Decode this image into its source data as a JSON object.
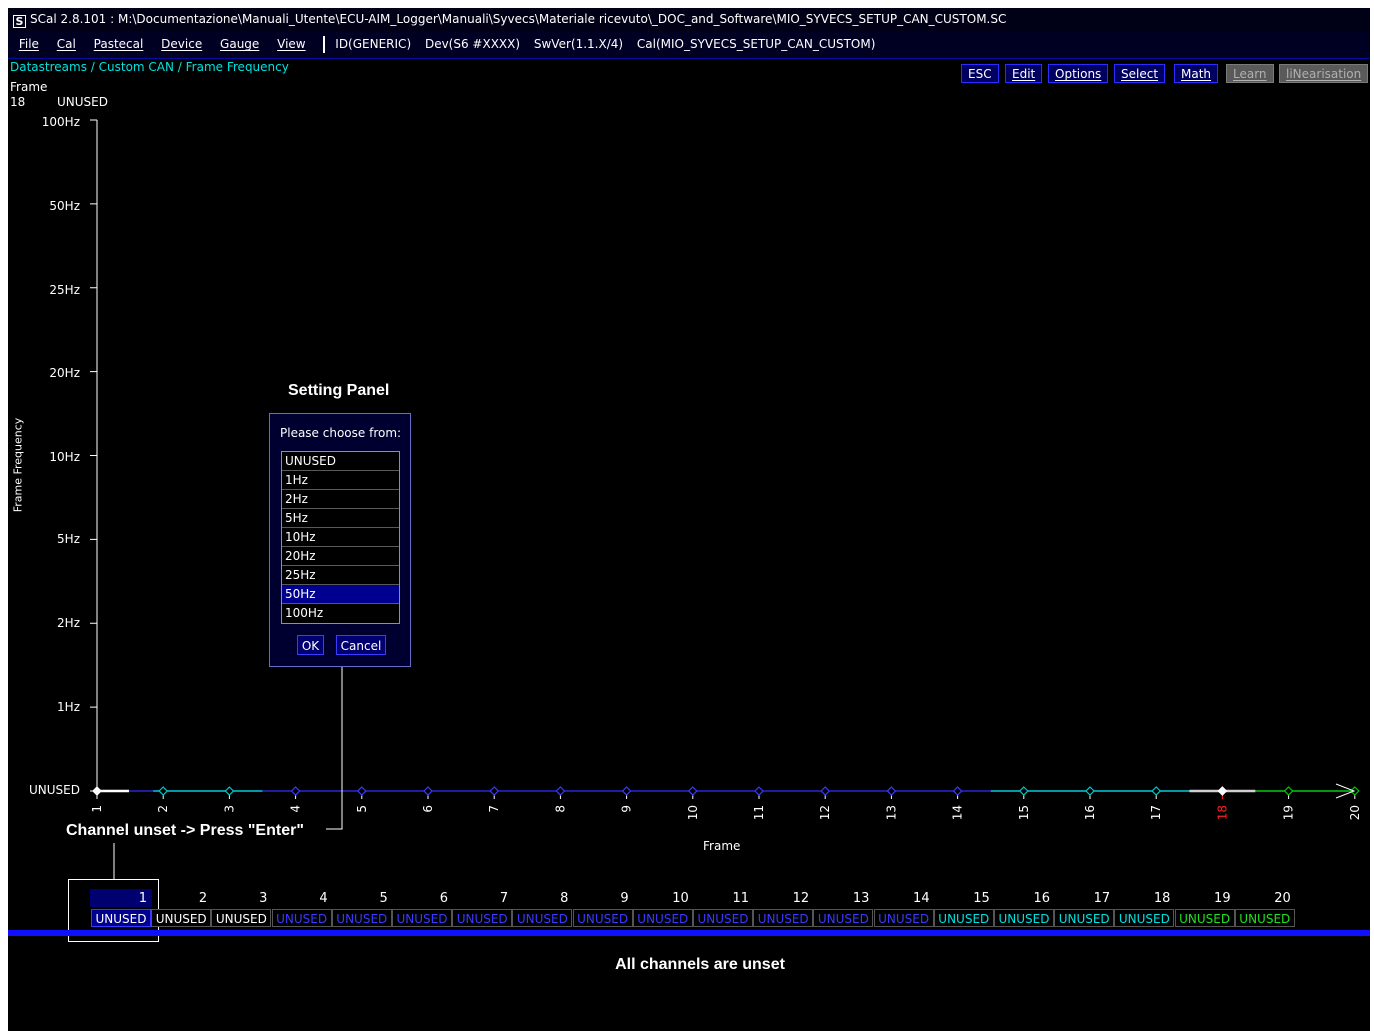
{
  "window": {
    "title": "SCal 2.8.101  :  M:\\Documentazione\\Manuali_Utente\\ECU-AIM_Logger\\Manuali\\Syvecs\\Materiale ricevuto\\_DOC_and_Software\\MIO_SYVECS_SETUP_CAN_CUSTOM.SC"
  },
  "menubar": {
    "items": [
      "File",
      "Cal",
      "Pastecal",
      "Device",
      "Gauge",
      "View"
    ],
    "status": {
      "id": "ID(GENERIC)",
      "dev": "Dev(S6 #XXXX)",
      "swver": "SwVer(1.1.X/4)",
      "cal": "Cal(MIO_SYVECS_SETUP_CAN_CUSTOM)"
    }
  },
  "breadcrumb": "Datastreams / Custom CAN / Frame Frequency",
  "info": {
    "label": "Frame",
    "index": "18",
    "value": "UNUSED"
  },
  "toolbar": {
    "esc": "ESC",
    "edit": "Edit",
    "options": "Options",
    "select": "Select",
    "math": "Math",
    "learn": "Learn",
    "linearisation": "liNearisation"
  },
  "chart": {
    "ylabel": "Frame Frequency",
    "xlabel": "Frame",
    "y_levels": [
      "UNUSED",
      "1Hz",
      "2Hz",
      "5Hz",
      "10Hz",
      "20Hz",
      "25Hz",
      "50Hz",
      "100Hz"
    ],
    "x_ticks": [
      "1",
      "2",
      "3",
      "4",
      "5",
      "6",
      "7",
      "8",
      "9",
      "10",
      "11",
      "12",
      "13",
      "14",
      "15",
      "16",
      "17",
      "18",
      "19",
      "20"
    ],
    "selected_frame": "18",
    "colors": {
      "axis": "#ffffff",
      "line": "#2f2fff",
      "cyan": "#00c8c8",
      "green": "#00c800",
      "selected": "#ff2020"
    }
  },
  "chart_data": {
    "type": "line",
    "x": [
      1,
      2,
      3,
      4,
      5,
      6,
      7,
      8,
      9,
      10,
      11,
      12,
      13,
      14,
      15,
      16,
      17,
      18,
      19,
      20
    ],
    "values": [
      "UNUSED",
      "UNUSED",
      "UNUSED",
      "UNUSED",
      "UNUSED",
      "UNUSED",
      "UNUSED",
      "UNUSED",
      "UNUSED",
      "UNUSED",
      "UNUSED",
      "UNUSED",
      "UNUSED",
      "UNUSED",
      "UNUSED",
      "UNUSED",
      "UNUSED",
      "UNUSED",
      "UNUSED",
      "UNUSED"
    ],
    "ylabel": "Frame Frequency",
    "xlabel": "Frame",
    "y_categories": [
      "UNUSED",
      "1Hz",
      "2Hz",
      "5Hz",
      "10Hz",
      "20Hz",
      "25Hz",
      "50Hz",
      "100Hz"
    ]
  },
  "annotations": {
    "setting_panel": "Setting Panel",
    "channel_unset": "Channel unset -> Press \"Enter\"",
    "all_unset": "All channels are unset"
  },
  "panel": {
    "prompt": "Please choose from:",
    "options": [
      "UNUSED",
      "1Hz",
      "2Hz",
      "5Hz",
      "10Hz",
      "20Hz",
      "25Hz",
      "50Hz",
      "100Hz"
    ],
    "selected": "50Hz",
    "ok": "OK",
    "cancel": "Cancel"
  },
  "channels": {
    "numbers": [
      "1",
      "2",
      "3",
      "4",
      "5",
      "6",
      "7",
      "8",
      "9",
      "10",
      "11",
      "12",
      "13",
      "14",
      "15",
      "16",
      "17",
      "18",
      "19",
      "20"
    ],
    "values": [
      "UNUSED",
      "UNUSED",
      "UNUSED",
      "UNUSED",
      "UNUSED",
      "UNUSED",
      "UNUSED",
      "UNUSED",
      "UNUSED",
      "UNUSED",
      "UNUSED",
      "UNUSED",
      "UNUSED",
      "UNUSED",
      "UNUSED",
      "UNUSED",
      "UNUSED",
      "UNUSED",
      "UNUSED",
      "UNUSED"
    ],
    "colors": [
      "#ffffff",
      "#ffffff",
      "#ffffff",
      "#3a3aff",
      "#3a3aff",
      "#3a3aff",
      "#3a3aff",
      "#3a3aff",
      "#3a3aff",
      "#3a3aff",
      "#3a3aff",
      "#3a3aff",
      "#3a3aff",
      "#3a3aff",
      "#00e0e0",
      "#00e0e0",
      "#00e0e0",
      "#00e0e0",
      "#20e020",
      "#20e020"
    ]
  }
}
